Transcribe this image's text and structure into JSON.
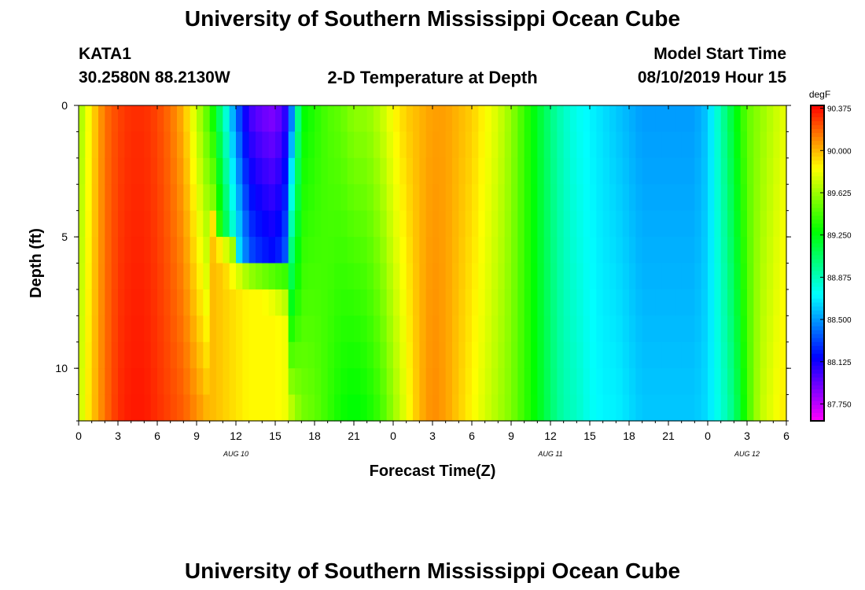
{
  "page": {
    "title_top": "University of Southern Mississippi Ocean Cube",
    "title_bottom": "University of Southern Mississippi Ocean Cube",
    "station_id": "KATA1",
    "station_coords": "30.2580N 88.2130W",
    "model_start_label": "Model Start Time",
    "model_start_value": "08/10/2019 Hour 15"
  },
  "chart_data": {
    "type": "heatmap",
    "title": "2-D Temperature at Depth",
    "xlabel": "Forecast Time(Z)",
    "ylabel": "Depth (ft)",
    "x_range_hours": [
      0,
      54
    ],
    "y_range_ft": [
      0,
      12
    ],
    "y_inverted": true,
    "x_ticks": [
      {
        "h": 0,
        "label": "0"
      },
      {
        "h": 3,
        "label": "3"
      },
      {
        "h": 6,
        "label": "6"
      },
      {
        "h": 9,
        "label": "9"
      },
      {
        "h": 12,
        "label": "12"
      },
      {
        "h": 15,
        "label": "15"
      },
      {
        "h": 18,
        "label": "18"
      },
      {
        "h": 21,
        "label": "21"
      },
      {
        "h": 24,
        "label": "0"
      },
      {
        "h": 27,
        "label": "3"
      },
      {
        "h": 30,
        "label": "6"
      },
      {
        "h": 33,
        "label": "9"
      },
      {
        "h": 36,
        "label": "12"
      },
      {
        "h": 39,
        "label": "15"
      },
      {
        "h": 42,
        "label": "18"
      },
      {
        "h": 45,
        "label": "21"
      },
      {
        "h": 48,
        "label": "0"
      },
      {
        "h": 51,
        "label": "3"
      },
      {
        "h": 54,
        "label": "6"
      }
    ],
    "date_labels": [
      {
        "h": 12,
        "label": "AUG 10"
      },
      {
        "h": 36,
        "label": "AUG 11"
      },
      {
        "h": 51,
        "label": "AUG 12"
      }
    ],
    "y_ticks": [
      {
        "ft": 0,
        "label": "0"
      },
      {
        "ft": 5,
        "label": "5"
      },
      {
        "ft": 10,
        "label": "10"
      }
    ],
    "colorbar": {
      "unit": "degF",
      "min": 87.6,
      "max": 90.4,
      "labels": [
        "90.375",
        "90.000",
        "89.625",
        "89.250",
        "88.875",
        "88.500",
        "88.125",
        "87.750"
      ]
    },
    "surface_profile": {
      "hours": [
        0,
        1,
        2,
        3,
        4,
        5,
        6,
        7,
        8,
        9,
        10,
        11,
        12,
        13,
        14,
        15,
        16,
        17,
        18,
        19,
        20,
        21,
        22,
        23,
        24,
        25,
        26,
        27,
        28,
        29,
        30,
        31,
        32,
        33,
        34,
        35,
        36,
        37,
        38,
        39,
        40,
        41,
        42,
        43,
        44,
        45,
        46,
        47,
        48,
        49,
        50,
        51,
        52,
        53,
        54
      ],
      "temps_degF": [
        89.6,
        89.9,
        90.15,
        90.25,
        90.3,
        90.3,
        90.25,
        90.15,
        90.0,
        89.7,
        89.4,
        88.9,
        88.4,
        88.0,
        87.9,
        87.85,
        88.1,
        89.25,
        89.35,
        89.45,
        89.5,
        89.6,
        89.6,
        89.7,
        89.85,
        89.95,
        90.0,
        90.05,
        90.05,
        90.0,
        89.95,
        89.85,
        89.75,
        89.6,
        89.4,
        89.2,
        89.0,
        88.85,
        88.75,
        88.7,
        88.65,
        88.6,
        88.55,
        88.5,
        88.5,
        88.5,
        88.5,
        88.5,
        88.6,
        88.9,
        89.2,
        89.5,
        89.6,
        89.7,
        89.8
      ]
    },
    "bottom_profile": {
      "hours": [
        0,
        1,
        2,
        3,
        4,
        5,
        6,
        7,
        8,
        9,
        10,
        11,
        12,
        13,
        14,
        15,
        16,
        17,
        18,
        19,
        20,
        21,
        22,
        23,
        24,
        25,
        26,
        27,
        28,
        29,
        30,
        31,
        32,
        33,
        34,
        35,
        36,
        37,
        38,
        39,
        40,
        41,
        42,
        43,
        44,
        45,
        46,
        47,
        48,
        49,
        50,
        51,
        52,
        53,
        54
      ],
      "temps_degF": [
        89.7,
        89.95,
        90.15,
        90.3,
        90.35,
        90.35,
        90.3,
        90.25,
        90.2,
        90.1,
        90.0,
        89.95,
        89.9,
        89.85,
        89.85,
        89.85,
        89.8,
        89.55,
        89.5,
        89.4,
        89.3,
        89.25,
        89.3,
        89.4,
        89.6,
        89.8,
        90.0,
        90.1,
        90.05,
        89.95,
        89.85,
        89.75,
        89.65,
        89.55,
        89.4,
        89.25,
        89.05,
        88.9,
        88.85,
        88.75,
        88.7,
        88.7,
        88.65,
        88.6,
        88.6,
        88.6,
        88.6,
        88.6,
        88.65,
        88.8,
        89.0,
        89.4,
        89.7,
        89.8,
        89.9
      ]
    },
    "thermocline_depth_ft": {
      "hours": [
        10,
        11,
        12,
        13,
        14,
        15,
        16
      ],
      "depth": [
        4.0,
        5.0,
        5.5,
        5.8,
        6.0,
        6.2,
        6.5
      ]
    }
  }
}
